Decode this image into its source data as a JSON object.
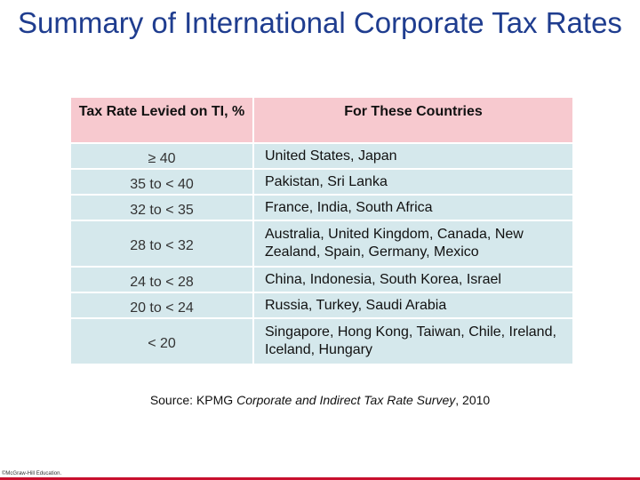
{
  "slide": {
    "title": "Summary of International Corporate Tax Rates"
  },
  "table": {
    "headers": [
      "Tax Rate Levied on TI, %",
      "For These Countries"
    ],
    "rows": [
      {
        "rate": "≥ 40",
        "countries": "United States, Japan"
      },
      {
        "rate": "35 to < 40",
        "countries": "Pakistan, Sri Lanka"
      },
      {
        "rate": "32 to < 35",
        "countries": "France, India, South Africa"
      },
      {
        "rate": "28 to < 32",
        "countries": "Australia, United Kingdom,  Canada, New Zealand, Spain, Germany, Mexico"
      },
      {
        "rate": "24 to < 28",
        "countries": "China, Indonesia, South Korea, Israel"
      },
      {
        "rate": "20 to < 24",
        "countries": "Russia, Turkey, Saudi Arabia"
      },
      {
        "rate": "< 20",
        "countries": "Singapore, Hong Kong, Taiwan, Chile, Ireland, Iceland, Hungary"
      }
    ]
  },
  "source": {
    "prefix": "Source: KPMG ",
    "italic": "Corporate and Indirect Tax Rate Survey",
    "suffix": ", 2010"
  },
  "footer": {
    "copyright": "©McGraw-Hill Education.",
    "accent_color": "#c8102e"
  },
  "colors": {
    "title": "#1f3d8f",
    "header_bg": "#f7c9cf",
    "cell_bg": "#d5e8ec"
  }
}
